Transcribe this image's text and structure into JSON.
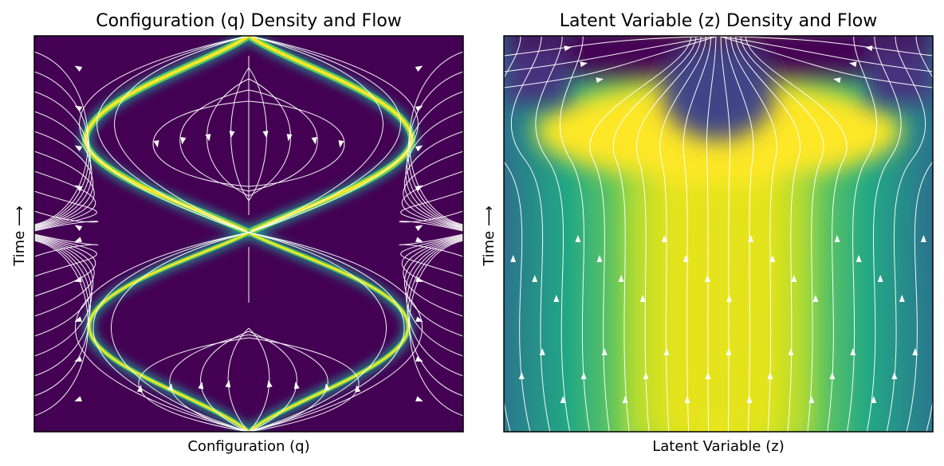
{
  "chart_data": [
    {
      "type": "heatmap",
      "title": "Configuration (q) Density and Flow",
      "xlabel": "Configuration (q)",
      "ylabel": "Time ⟶",
      "x_ticks_visible": false,
      "y_ticks_visible": false,
      "colormap": "viridis",
      "overlay": "streamlines",
      "density_structure": {
        "description_shown": "",
        "ridge_crossings": 2,
        "ridge_shape": "two lobes meeting at center"
      }
    },
    {
      "type": "heatmap",
      "title": "Latent Variable (z) Density and Flow",
      "xlabel": "Latent Variable (z)",
      "ylabel": "Time ⟶",
      "x_ticks_visible": false,
      "y_ticks_visible": false,
      "colormap": "viridis",
      "overlay": "streamlines"
    }
  ],
  "colors": {
    "viridis_low": "#440154",
    "viridis_dark": "#3b0f70",
    "viridis_mid": "#21918c",
    "viridis_green": "#5ec962",
    "viridis_high": "#fde725",
    "stream": "#ffffff"
  }
}
